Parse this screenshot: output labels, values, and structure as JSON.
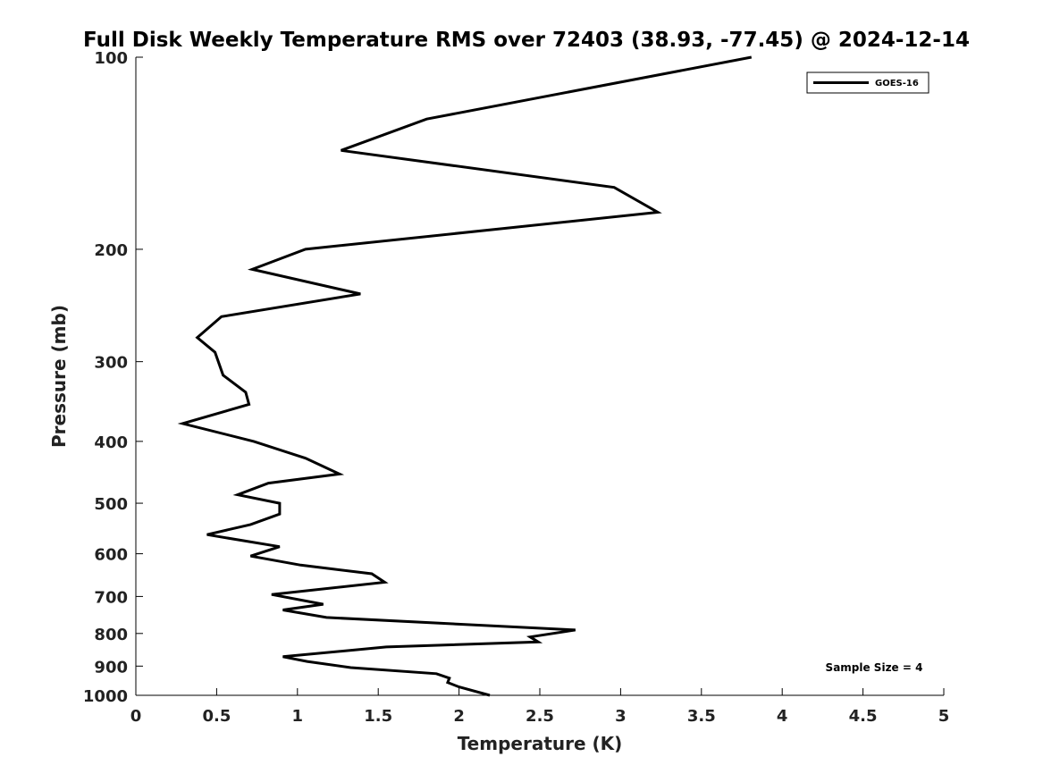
{
  "chart_data": {
    "type": "line",
    "title": "Full Disk Weekly Temperature RMS over 72403 (38.93, -77.45) @ 2024-12-14",
    "xlabel": "Temperature (K)",
    "ylabel": "Pressure (mb)",
    "xlim": [
      0,
      5
    ],
    "ylim": [
      100,
      1000
    ],
    "y_scale": "log",
    "y_reversed": true,
    "x_ticks": [
      "0",
      "0.5",
      "1",
      "1.5",
      "2",
      "2.5",
      "3",
      "3.5",
      "4",
      "4.5",
      "5"
    ],
    "y_ticks": [
      "100",
      "200",
      "300",
      "400",
      "500",
      "600",
      "700",
      "800",
      "900",
      "1000"
    ],
    "grid": false,
    "legend_placement": "top-right",
    "annotation": "Sample Size = 4",
    "series": [
      {
        "name": "GOES-16",
        "color": "#000000",
        "points": [
          [
            3.81,
            100
          ],
          [
            1.8,
            125
          ],
          [
            1.27,
            140
          ],
          [
            2.96,
            160
          ],
          [
            3.23,
            175
          ],
          [
            1.05,
            200
          ],
          [
            0.72,
            215
          ],
          [
            1.39,
            235
          ],
          [
            0.53,
            255
          ],
          [
            0.38,
            275
          ],
          [
            0.49,
            290
          ],
          [
            0.54,
            315
          ],
          [
            0.68,
            335
          ],
          [
            0.7,
            350
          ],
          [
            0.29,
            375
          ],
          [
            0.73,
            400
          ],
          [
            1.05,
            425
          ],
          [
            1.26,
            450
          ],
          [
            0.82,
            465
          ],
          [
            0.63,
            485
          ],
          [
            0.89,
            500
          ],
          [
            0.89,
            520
          ],
          [
            0.71,
            540
          ],
          [
            0.44,
            560
          ],
          [
            0.89,
            585
          ],
          [
            0.71,
            605
          ],
          [
            1.02,
            625
          ],
          [
            1.46,
            645
          ],
          [
            1.54,
            665
          ],
          [
            0.84,
            695
          ],
          [
            1.16,
            720
          ],
          [
            0.91,
            735
          ],
          [
            1.18,
            755
          ],
          [
            2.72,
            790
          ],
          [
            2.44,
            810
          ],
          [
            2.49,
            825
          ],
          [
            1.55,
            840
          ],
          [
            0.91,
            870
          ],
          [
            1.06,
            885
          ],
          [
            1.33,
            905
          ],
          [
            1.86,
            925
          ],
          [
            1.94,
            940
          ],
          [
            1.93,
            955
          ],
          [
            2.0,
            970
          ],
          [
            2.19,
            1000
          ]
        ]
      }
    ]
  }
}
